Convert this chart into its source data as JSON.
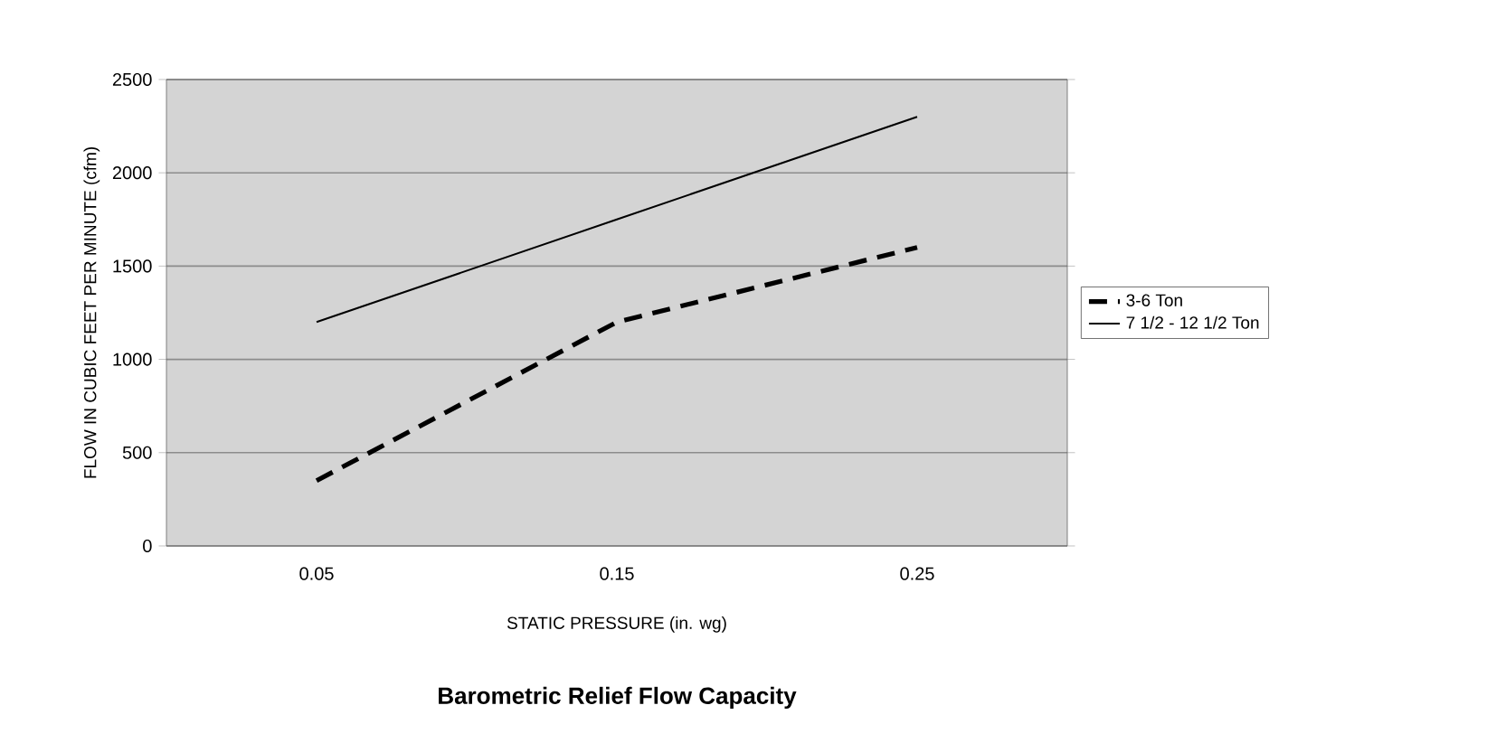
{
  "chart_data": {
    "type": "line",
    "title": "Barometric Relief Flow Capacity",
    "xlabel": "STATIC PRESSURE (in. wg)",
    "ylabel": "FLOW IN CUBIC FEET PER MINUTE (cfm)",
    "categories": [
      "0.05",
      "0.15",
      "0.25"
    ],
    "series": [
      {
        "name": "3-6 Ton",
        "color": "#000000",
        "values": [
          350,
          1200,
          1600
        ],
        "line_style": "dashed"
      },
      {
        "name": "7 1/2 - 12 1/2 Ton",
        "color": "#000000",
        "values": [
          1200,
          1750,
          2300
        ],
        "line_style": "solid"
      }
    ],
    "ylim": [
      0,
      2500
    ],
    "yticks": [
      0,
      500,
      1000,
      1500,
      2000,
      2500
    ],
    "grid": "y",
    "legend": "right",
    "marker": "none"
  }
}
